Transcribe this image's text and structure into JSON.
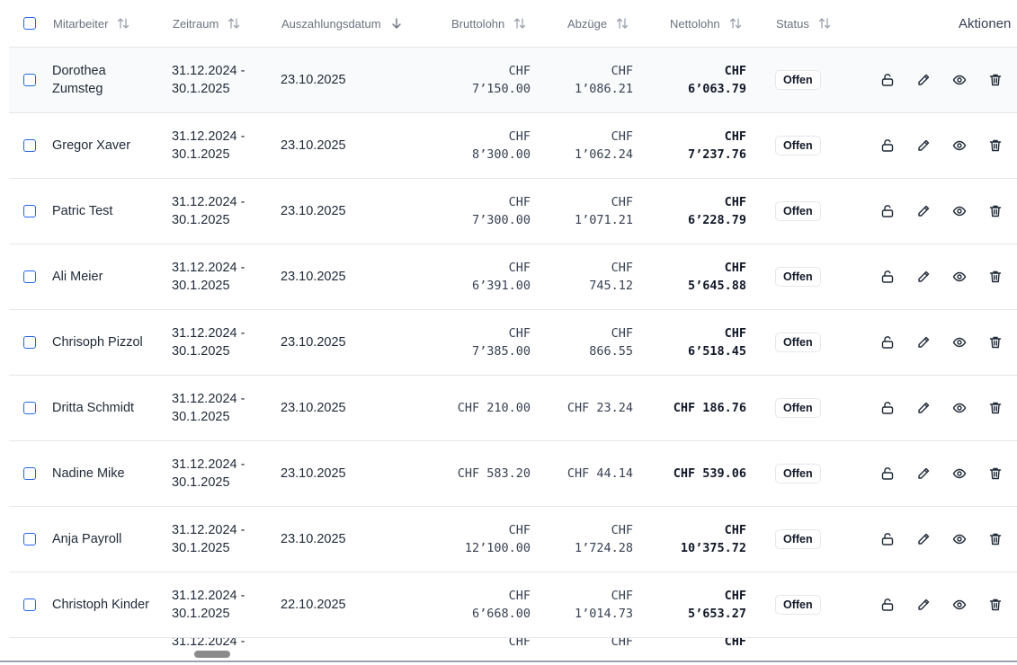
{
  "header": {
    "employee": "Mitarbeiter",
    "period": "Zeitraum",
    "payout_date": "Auszahlungsdatum",
    "gross": "Bruttolohn",
    "deductions": "Abzüge",
    "net": "Nettolohn",
    "status": "Status",
    "actions": "Aktionen"
  },
  "rows": [
    {
      "name": "Dorothea Zumsteg",
      "period": "31.12.2024 - 30.1.2025",
      "payout": "23.10.2025",
      "gross": [
        "CHF",
        "7’150.00"
      ],
      "deductions": [
        "CHF",
        "1’086.21"
      ],
      "net": [
        "CHF",
        "6’063.79"
      ],
      "status": "Offen"
    },
    {
      "name": "Gregor Xaver",
      "period": "31.12.2024 - 30.1.2025",
      "payout": "23.10.2025",
      "gross": [
        "CHF",
        "8’300.00"
      ],
      "deductions": [
        "CHF",
        "1’062.24"
      ],
      "net": [
        "CHF",
        "7’237.76"
      ],
      "status": "Offen"
    },
    {
      "name": "Patric Test",
      "period": "31.12.2024 - 30.1.2025",
      "payout": "23.10.2025",
      "gross": [
        "CHF",
        "7’300.00"
      ],
      "deductions": [
        "CHF",
        "1’071.21"
      ],
      "net": [
        "CHF",
        "6’228.79"
      ],
      "status": "Offen"
    },
    {
      "name": "Ali Meier",
      "period": "31.12.2024 - 30.1.2025",
      "payout": "23.10.2025",
      "gross": [
        "CHF",
        "6’391.00"
      ],
      "deductions": [
        "CHF",
        "745.12"
      ],
      "net": [
        "CHF",
        "5’645.88"
      ],
      "status": "Offen"
    },
    {
      "name": "Chrisoph Pizzol",
      "period": "31.12.2024 - 30.1.2025",
      "payout": "23.10.2025",
      "gross": [
        "CHF",
        "7’385.00"
      ],
      "deductions": [
        "CHF",
        "866.55"
      ],
      "net": [
        "CHF",
        "6’518.45"
      ],
      "status": "Offen"
    },
    {
      "name": "Dritta Schmidt",
      "period": "31.12.2024 - 30.1.2025",
      "payout": "23.10.2025",
      "gross": [
        "CHF 210.00"
      ],
      "deductions": [
        "CHF 23.24"
      ],
      "net": [
        "CHF 186.76"
      ],
      "status": "Offen"
    },
    {
      "name": "Nadine Mike",
      "period": "31.12.2024 - 30.1.2025",
      "payout": "23.10.2025",
      "gross": [
        "CHF 583.20"
      ],
      "deductions": [
        "CHF 44.14"
      ],
      "net": [
        "CHF 539.06"
      ],
      "status": "Offen"
    },
    {
      "name": "Anja Payroll",
      "period": "31.12.2024 - 30.1.2025",
      "payout": "23.10.2025",
      "gross": [
        "CHF",
        "12’100.00"
      ],
      "deductions": [
        "CHF",
        "1’724.28"
      ],
      "net": [
        "CHF",
        "10’375.72"
      ],
      "status": "Offen"
    },
    {
      "name": "Christoph Kinder",
      "period": "31.12.2024 - 30.1.2025",
      "payout": "22.10.2025",
      "gross": [
        "CHF",
        "6’668.00"
      ],
      "deductions": [
        "CHF",
        "1’014.73"
      ],
      "net": [
        "CHF",
        "5’653.27"
      ],
      "status": "Offen"
    }
  ],
  "partial_row": {
    "period": "31.12.2024 -",
    "gross": "CHF",
    "deductions": "CHF",
    "net": "CHF"
  },
  "colors": {
    "accent": "#2563eb",
    "border": "#e5e7eb",
    "muted": "#6b7280"
  },
  "icons": [
    "sort-icon",
    "sort-desc-icon",
    "unlock-icon",
    "pencil-icon",
    "eye-icon",
    "trash-icon"
  ]
}
